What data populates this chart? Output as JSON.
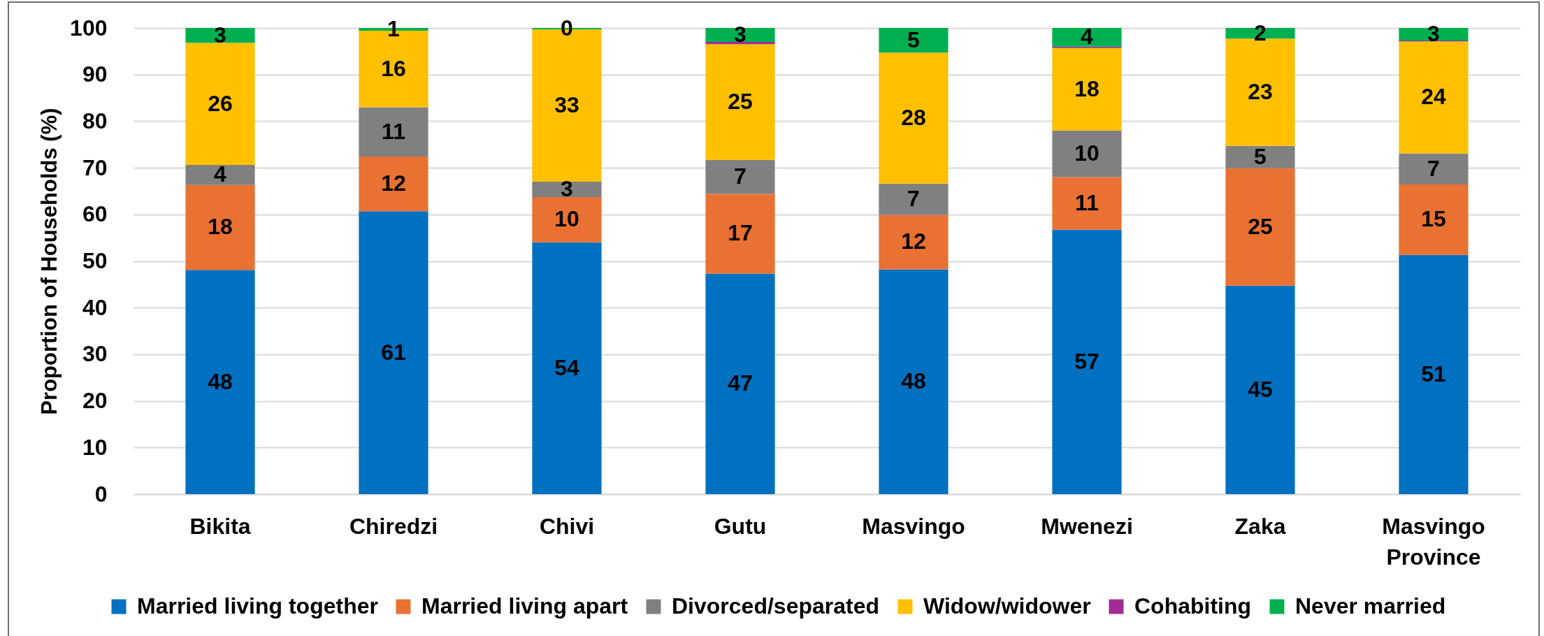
{
  "chart_data": {
    "type": "bar",
    "ylabel": "Proportion of Households (%)",
    "categories": [
      "Bikita",
      "Chiredzi",
      "Chivi",
      "Gutu",
      "Masvingo",
      "Mwenezi",
      "Zaka",
      "Masvingo Province"
    ],
    "stacked": true,
    "ylim": [
      0,
      100
    ],
    "yticks": [
      0,
      10,
      20,
      30,
      40,
      50,
      60,
      70,
      80,
      90,
      100
    ],
    "grid": "y",
    "legend": "bottom",
    "series": [
      {
        "name": "Married living together",
        "color": "#0070c0",
        "values": [
          48.1,
          60.7,
          54.0,
          47.3,
          48.2,
          56.7,
          44.7,
          51.3
        ],
        "value_labels": [
          "48",
          "61",
          "54",
          "47",
          "48",
          "57",
          "45",
          "51"
        ]
      },
      {
        "name": "Married living apart",
        "color": "#e97132",
        "values": [
          18.2,
          11.7,
          9.7,
          17.1,
          11.7,
          11.3,
          25.2,
          15.1
        ],
        "value_labels": [
          "18",
          "12",
          "10",
          "17",
          "12",
          "11",
          "25",
          "15"
        ]
      },
      {
        "name": "Divorced/separated",
        "color": "#808080",
        "values": [
          4.3,
          10.6,
          3.3,
          7.3,
          6.7,
          10.0,
          4.8,
          6.7
        ],
        "value_labels": [
          "4",
          "11",
          "3",
          "7",
          "7",
          "10",
          "5",
          "7"
        ]
      },
      {
        "name": "Widow/widower",
        "color": "#ffc000",
        "values": [
          26.2,
          16.4,
          32.7,
          24.8,
          28.1,
          17.7,
          23.0,
          24.0
        ],
        "value_labels": [
          "26",
          "16",
          "33",
          "25",
          "28",
          "18",
          "23",
          "24"
        ]
      },
      {
        "name": "Cohabiting",
        "color": "#a02b93",
        "values": [
          0,
          0,
          0,
          0.5,
          0,
          0.3,
          0,
          0.2
        ]
      },
      {
        "name": "Never married",
        "color": "#00b050",
        "values": [
          3.2,
          0.6,
          0.3,
          3.0,
          5.3,
          4.0,
          2.3,
          2.7
        ],
        "value_labels": [
          "3",
          "1",
          "0",
          "3",
          "5",
          "4",
          "2",
          "3"
        ]
      }
    ]
  }
}
